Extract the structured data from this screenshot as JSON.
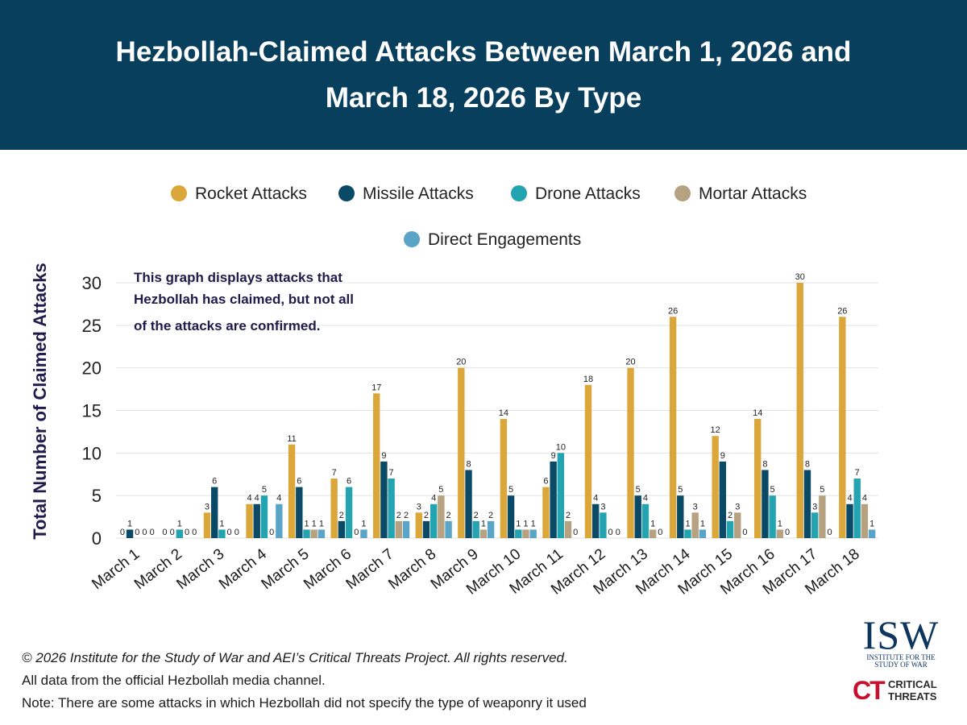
{
  "header": {
    "title": "Hezbollah-Claimed Attacks Between March 1, 2026 and March 18, 2026 By Type"
  },
  "chart_note": {
    "lines": [
      "This graph displays attacks that",
      "Hezbollah has claimed, but not all",
      "of the attacks are confirmed."
    ]
  },
  "chart_data": {
    "type": "bar",
    "title": "Hezbollah-Claimed Attacks Between March 1, 2026 and March 18, 2026 By Type",
    "xlabel": "",
    "ylabel": "Total Number of Claimed Attacks",
    "ylim": [
      0,
      30
    ],
    "yticks": [
      0,
      5,
      10,
      15,
      20,
      25,
      30
    ],
    "grid": true,
    "legend_position": "top-center",
    "categories": [
      "March 1",
      "March 2",
      "March 3",
      "March 4",
      "March 5",
      "March 6",
      "March 7",
      "March 8",
      "March 9",
      "March 10",
      "March 11",
      "March 12",
      "March 13",
      "March 14",
      "March 15",
      "March 16",
      "March 17",
      "March 18"
    ],
    "series": [
      {
        "name": "Rocket Attacks",
        "color": "#dca73a",
        "values": [
          0,
          0,
          3,
          4,
          11,
          7,
          17,
          3,
          20,
          14,
          6,
          18,
          20,
          26,
          12,
          14,
          30,
          26
        ]
      },
      {
        "name": "Missile Attacks",
        "color": "#0b4a66",
        "values": [
          1,
          0,
          6,
          4,
          6,
          2,
          9,
          2,
          8,
          5,
          9,
          4,
          5,
          5,
          9,
          8,
          8,
          4
        ]
      },
      {
        "name": "Drone Attacks",
        "color": "#24a3b0",
        "values": [
          0,
          1,
          1,
          5,
          1,
          6,
          7,
          4,
          2,
          1,
          10,
          3,
          4,
          1,
          2,
          5,
          3,
          7
        ]
      },
      {
        "name": "Mortar Attacks",
        "color": "#b6a281",
        "values": [
          0,
          0,
          0,
          0,
          1,
          0,
          2,
          5,
          1,
          1,
          2,
          0,
          1,
          3,
          3,
          1,
          5,
          4
        ]
      },
      {
        "name": "Direct Engagements",
        "color": "#5aa4c7",
        "values": [
          0,
          0,
          0,
          4,
          1,
          1,
          2,
          2,
          2,
          1,
          0,
          0,
          0,
          1,
          0,
          0,
          0,
          1
        ]
      }
    ]
  },
  "footer": {
    "copyright": "© 2026 Institute for the Study of War and AEI’s Critical Threats Project. All rights reserved.",
    "source": "All data from the official Hezbollah media channel.",
    "note": "Note: There are some attacks in which Hezbollah did not specify the type of weaponry it used"
  },
  "logos": {
    "isw": {
      "letters": "ISW",
      "sub_line1": "INSTITUTE FOR THE",
      "sub_line2": "STUDY OF WAR"
    },
    "ct": {
      "mark": "CT",
      "line1": "CRITICAL",
      "line2": "THREATS"
    }
  }
}
